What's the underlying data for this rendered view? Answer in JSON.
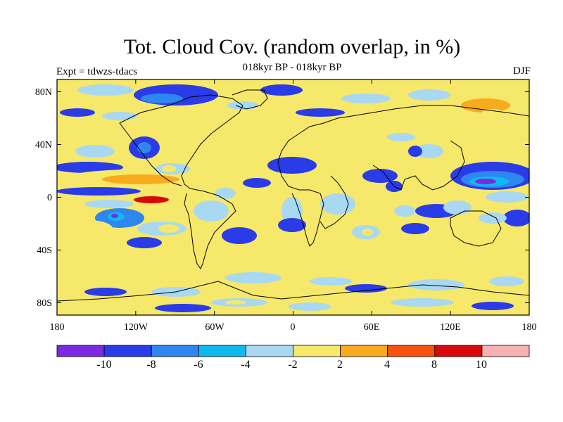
{
  "header": {
    "title": "Tot. Cloud Cov. (random overlap, in %)",
    "subtitle": "018kyr BP - 018kyr BP",
    "experiment": "Expt = tdwzs-tdacs",
    "season": "DJF"
  },
  "map": {
    "lat_labels": [
      "80N",
      "40N",
      "0",
      "40S",
      "80S"
    ],
    "lon_labels": [
      "180",
      "120W",
      "60W",
      "0",
      "60E",
      "120E",
      "180"
    ],
    "land_color": "#f5e86a",
    "coast_color": "#000000"
  },
  "colorbar": {
    "colors": [
      "#7a2be0",
      "#2a3be8",
      "#2f86f0",
      "#0fb9f0",
      "#a9d8f3",
      "#f7e86a",
      "#f8ab1c",
      "#f8530e",
      "#d70a0a",
      "#f8b1b1"
    ],
    "labels": [
      "-10",
      "-8",
      "-6",
      "-4",
      "-2",
      "2",
      "4",
      "8",
      "10"
    ]
  }
}
